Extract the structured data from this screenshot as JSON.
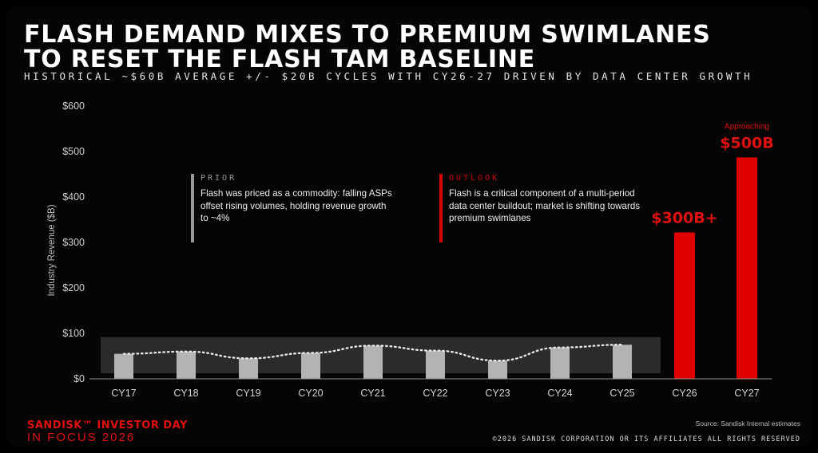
{
  "slide": {
    "title_line1": "FLASH DEMAND MIXES TO PREMIUM SWIMLANES",
    "title_line2": "TO RESET THE FLASH TAM BASELINE",
    "subtitle": "HISTORICAL ~$60B AVERAGE +/- $20B CYCLES WITH CY26-27 DRIVEN BY DATA CENTER GROWTH",
    "prior_heading": "PRIOR",
    "prior_text": "Flash was priced as a commodity: falling ASPs offset rising volumes, holding revenue growth to ~4%",
    "outlook_heading": "OUTLOOK",
    "outlook_text": "Flash is a critical component of a multi-period data center buildout; market is shifting towards premium swimlanes",
    "logo_brand": "SANDISK™ INVESTOR DAY",
    "logo_event": "IN FOCUS 2026",
    "source": "Source: Sandisk Internal estimates",
    "copyright": "©2026 SANDISK CORPORATION OR ITS AFFILIATES ALL RIGHTS RESERVED"
  },
  "colors": {
    "background": "#000000",
    "historical_bar": "#b3b3b3",
    "projected_bar": "#e00000",
    "band": "#2b2b2b",
    "accent_red": "#e01010",
    "prior_line": "#9a9a9a"
  },
  "chart_data": {
    "type": "bar",
    "ylabel": "Industry Revenue ($B)",
    "ylim": [
      0,
      600
    ],
    "yticks": [
      0,
      100,
      200,
      300,
      400,
      500,
      600
    ],
    "ytick_labels": [
      "$0",
      "$100",
      "$200",
      "$300",
      "$400",
      "$500",
      "$600"
    ],
    "grid": false,
    "categories": [
      "CY17",
      "CY18",
      "CY19",
      "CY20",
      "CY21",
      "CY22",
      "CY23",
      "CY24",
      "CY25",
      "CY26",
      "CY27"
    ],
    "values": [
      55,
      60,
      45,
      57,
      73,
      62,
      40,
      69,
      75,
      322,
      487
    ],
    "projected": [
      false,
      false,
      false,
      false,
      false,
      false,
      false,
      false,
      false,
      true,
      true
    ],
    "historical_band": [
      12,
      92
    ],
    "trend_line": "dotted",
    "annotations": [
      {
        "category": "CY26",
        "label": "$300B+"
      },
      {
        "category": "CY27",
        "label": "$500B",
        "prefix": "Approaching"
      }
    ]
  }
}
